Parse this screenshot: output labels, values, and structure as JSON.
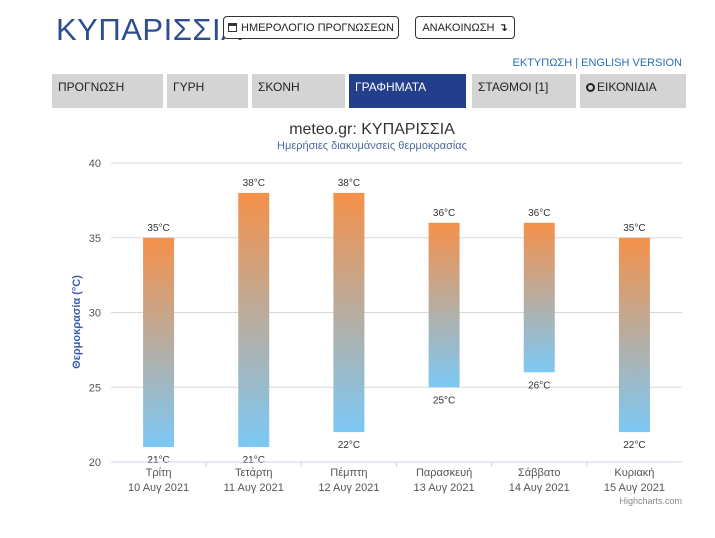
{
  "header": {
    "city": "ΚΥΠΑΡΙΣΣΙΑ",
    "calendar_button": "ΗΜΕΡΟΛΟΓΙΟ ΠΡΟΓΝΩΣΕΩΝ",
    "announce_button": "ΑΝΑΚΟΙΝΩΣΗ",
    "print_link": "ΕΚΤΥΠΩΣΗ",
    "separator": " | ",
    "english_link": "ENGLISH VERSION"
  },
  "tabs": [
    {
      "label": "ΠΡΟΓΝΩΣΗ"
    },
    {
      "label": "ΓΥΡΗ"
    },
    {
      "label": "ΣΚΟΝΗ"
    },
    {
      "label": "ΓΡΑΦΗΜΑΤΑ"
    },
    {
      "label": "ΣΤΑΘΜΟΙ [1]"
    },
    {
      "label": "ΕΙΚΟΝΙΔΙΑ"
    }
  ],
  "active_tab": "ΓΡΑΦΗΜΑΤΑ",
  "colors": {
    "accent": "#233e8b",
    "bar_top": "#f5914a",
    "bar_bottom": "#7cc8f5"
  },
  "chart_data": {
    "type": "bar",
    "title": "meteo.gr: ΚΥΠΑΡΙΣΣΙΑ",
    "subtitle": "Ημερήσιες διακυμάνσεις θερμοκρασίας",
    "ylabel": "Θερμοκρασία (°C)",
    "ylim": [
      20,
      40
    ],
    "yticks": [
      "20",
      "25",
      "30",
      "35",
      "40"
    ],
    "categories": [
      {
        "day": "Τρίτη",
        "date": "10 Αυγ 2021"
      },
      {
        "day": "Τετάρτη",
        "date": "11 Αυγ 2021"
      },
      {
        "day": "Πέμπτη",
        "date": "12 Αυγ 2021"
      },
      {
        "day": "Παρασκευή",
        "date": "13 Αυγ 2021"
      },
      {
        "day": "Σάββατο",
        "date": "14 Αυγ 2021"
      },
      {
        "day": "Κυριακή",
        "date": "15 Αυγ 2021"
      }
    ],
    "min": [
      21,
      21,
      22,
      25,
      26,
      22
    ],
    "max": [
      35,
      38,
      38,
      36,
      36,
      35
    ],
    "min_labels": [
      "21°C",
      "21°C",
      "22°C",
      "25°C",
      "26°C",
      "22°C"
    ],
    "max_labels": [
      "35°C",
      "38°C",
      "38°C",
      "36°C",
      "36°C",
      "35°C"
    ],
    "grid": true,
    "credit": "Highcharts.com"
  }
}
